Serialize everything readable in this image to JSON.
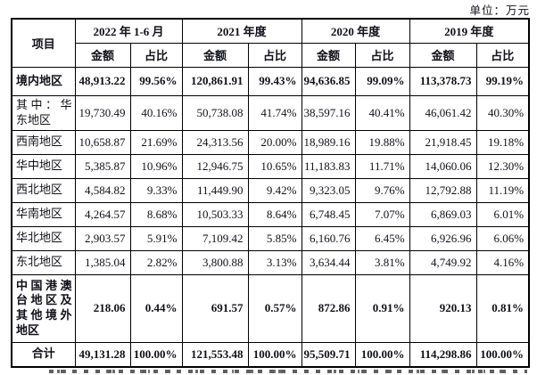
{
  "colors": {
    "background": "#ffffff",
    "text": "#10101a",
    "numbers": "#1c1c3a",
    "border": "#000000"
  },
  "unit_label": "单位：万元",
  "table": {
    "item_header": "项目",
    "period_headers": [
      "2022 年 1-6 月",
      "2021 年度",
      "2020 年度",
      "2019 年度"
    ],
    "sub_headers": [
      "金额",
      "占比"
    ],
    "rows": [
      {
        "label": "境内地区",
        "bold": true,
        "values": [
          "48,913.22",
          "99.56%",
          "120,861.91",
          "99.43%",
          "94,636.85",
          "99.09%",
          "113,378.73",
          "99.19%"
        ]
      },
      {
        "label": "其中：华东地区",
        "bold": false,
        "values": [
          "19,730.49",
          "40.16%",
          "50,738.08",
          "41.74%",
          "38,597.16",
          "40.41%",
          "46,061.42",
          "40.30%"
        ]
      },
      {
        "label": "西南地区",
        "bold": false,
        "values": [
          "10,658.87",
          "21.69%",
          "24,313.56",
          "20.00%",
          "18,989.16",
          "19.88%",
          "21,918.45",
          "19.18%"
        ]
      },
      {
        "label": "华中地区",
        "bold": false,
        "values": [
          "5,385.87",
          "10.96%",
          "12,946.75",
          "10.65%",
          "11,183.83",
          "11.71%",
          "14,060.06",
          "12.30%"
        ]
      },
      {
        "label": "西北地区",
        "bold": false,
        "values": [
          "4,584.82",
          "9.33%",
          "11,449.90",
          "9.42%",
          "9,323.05",
          "9.76%",
          "12,792.88",
          "11.19%"
        ]
      },
      {
        "label": "华南地区",
        "bold": false,
        "values": [
          "4,264.57",
          "8.68%",
          "10,503.33",
          "8.64%",
          "6,748.45",
          "7.07%",
          "6,869.03",
          "6.01%"
        ]
      },
      {
        "label": "华北地区",
        "bold": false,
        "values": [
          "2,903.57",
          "5.91%",
          "7,109.42",
          "5.85%",
          "6,160.76",
          "6.45%",
          "6,926.96",
          "6.06%"
        ]
      },
      {
        "label": "东北地区",
        "bold": false,
        "values": [
          "1,385.04",
          "2.82%",
          "3,800.88",
          "3.13%",
          "3,634.44",
          "3.81%",
          "4,749.92",
          "4.16%"
        ]
      },
      {
        "label": "中国港澳台地区及其他境外地区",
        "bold": true,
        "values": [
          "218.06",
          "0.44%",
          "691.57",
          "0.57%",
          "872.86",
          "0.91%",
          "920.13",
          "0.81%"
        ]
      },
      {
        "label": "合计",
        "bold": true,
        "label_align": "center",
        "values": [
          "49,131.28",
          "100.00%",
          "121,553.48",
          "100.00%",
          "95,509.71",
          "100.00%",
          "114,298.86",
          "100.00%"
        ]
      }
    ]
  },
  "footnote": {
    "clipped": true
  }
}
